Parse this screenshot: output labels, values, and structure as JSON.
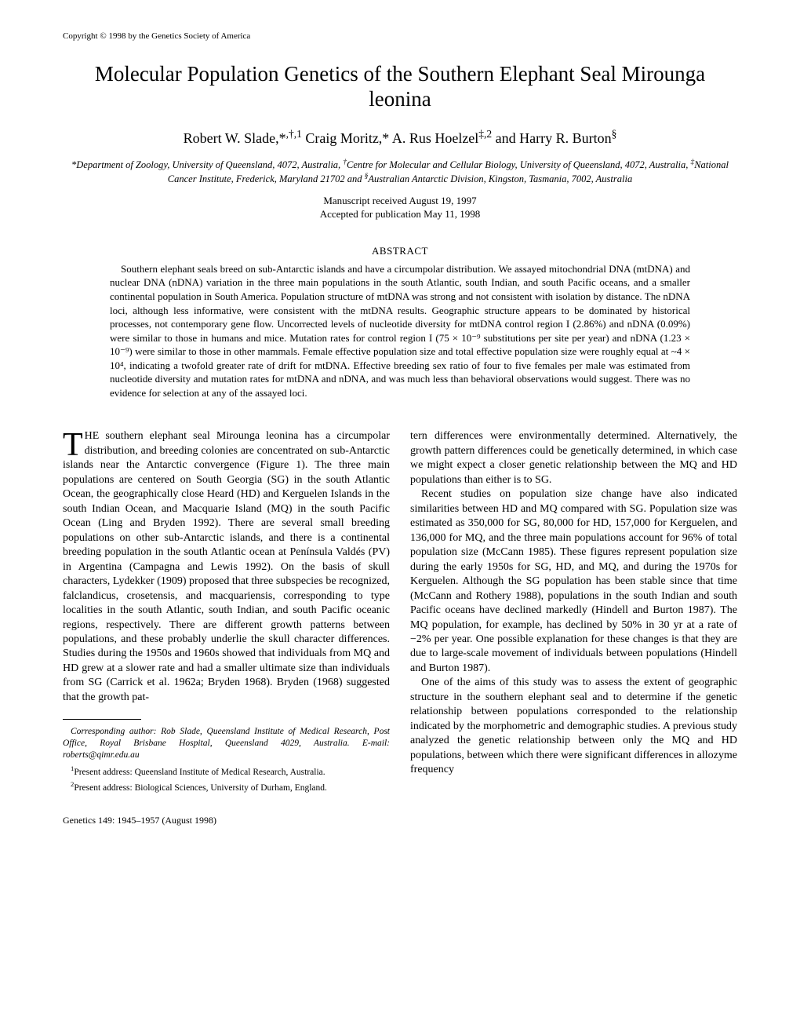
{
  "copyright": "Copyright © 1998 by the Genetics Society of America",
  "title": "Molecular Population Genetics of the Southern Elephant Seal Mirounga leonina",
  "authors_html": "Robert W. Slade,*<sup>,†,1</sup> Craig Moritz,* A. Rus Hoelzel<sup>‡,2</sup> and Harry R. Burton<sup>§</sup>",
  "affiliations_html": "*Department of Zoology, University of Queensland, 4072, Australia, <sup>†</sup>Centre for Molecular and Cellular Biology, University of Queensland, 4072, Australia, <sup>‡</sup>National Cancer Institute, Frederick, Maryland 21702 and <sup>§</sup>Australian Antarctic Division, Kingston, Tasmania, 7002, Australia",
  "received": "Manuscript received August 19, 1997",
  "accepted": "Accepted for publication May 11, 1998",
  "abstract_heading": "ABSTRACT",
  "abstract_body": "Southern elephant seals breed on sub-Antarctic islands and have a circumpolar distribution. We assayed mitochondrial DNA (mtDNA) and nuclear DNA (nDNA) variation in the three main populations in the south Atlantic, south Indian, and south Pacific oceans, and a smaller continental population in South America. Population structure of mtDNA was strong and not consistent with isolation by distance. The nDNA loci, although less informative, were consistent with the mtDNA results. Geographic structure appears to be dominated by historical processes, not contemporary gene flow. Uncorrected levels of nucleotide diversity for mtDNA control region I (2.86%) and nDNA (0.09%) were similar to those in humans and mice. Mutation rates for control region I (75 × 10⁻⁹ substitutions per site per year) and nDNA (1.23 × 10⁻⁹) were similar to those in other mammals. Female effective population size and total effective population size were roughly equal at ~4 × 10⁴, indicating a twofold greater rate of drift for mtDNA. Effective breeding sex ratio of four to five females per male was estimated from nucleotide diversity and mutation rates for mtDNA and nDNA, and was much less than behavioral observations would suggest. There was no evidence for selection at any of the assayed loci.",
  "body": {
    "col1": {
      "p1_dropcap": "T",
      "p1": "HE southern elephant seal Mirounga leonina has a circumpolar distribution, and breeding colonies are concentrated on sub-Antarctic islands near the Antarctic convergence (Figure 1). The three main populations are centered on South Georgia (SG) in the south Atlantic Ocean, the geographically close Heard (HD) and Kerguelen Islands in the south Indian Ocean, and Macquarie Island (MQ) in the south Pacific Ocean (Ling and Bryden 1992). There are several small breeding populations on other sub-Antarctic islands, and there is a continental breeding population in the south Atlantic ocean at Península Valdés (PV) in Argentina (Campagna and Lewis 1992). On the basis of skull characters, Lydekker (1909) proposed that three subspecies be recognized, falclandicus, crosetensis, and macquariensis, corresponding to type localities in the south Atlantic, south Indian, and south Pacific oceanic regions, respectively. There are different growth patterns between populations, and these probably underlie the skull character differences. Studies during the 1950s and 1960s showed that individuals from MQ and HD grew at a slower rate and had a smaller ultimate size than individuals from SG (Carrick et al. 1962a; Bryden 1968). Bryden (1968) suggested that the growth pat-"
    },
    "col2": {
      "p1": "tern differences were environmentally determined. Alternatively, the growth pattern differences could be genetically determined, in which case we might expect a closer genetic relationship between the MQ and HD populations than either is to SG.",
      "p2": "Recent studies on population size change have also indicated similarities between HD and MQ compared with SG. Population size was estimated as 350,000 for SG, 80,000 for HD, 157,000 for Kerguelen, and 136,000 for MQ, and the three main populations account for 96% of total population size (McCann 1985). These figures represent population size during the early 1950s for SG, HD, and MQ, and during the 1970s for Kerguelen. Although the SG population has been stable since that time (McCann and Rothery 1988), populations in the south Indian and south Pacific oceans have declined markedly (Hindell and Burton 1987). The MQ population, for example, has declined by 50% in 30 yr at a rate of −2% per year. One possible explanation for these changes is that they are due to large-scale movement of individuals between populations (Hindell and Burton 1987).",
      "p3": "One of the aims of this study was to assess the extent of geographic structure in the southern elephant seal and to determine if the genetic relationship between populations corresponded to the relationship indicated by the morphometric and demographic studies. A previous study analyzed the genetic relationship between only the MQ and HD populations, between which there were significant differences in allozyme frequency"
    }
  },
  "corresponding": "Corresponding author: Rob Slade, Queensland Institute of Medical Research, Post Office, Royal Brisbane Hospital, Queensland 4029, Australia.   E-mail: roberts@qimr.edu.au",
  "footnote1_html": "<sup>1</sup>Present address: Queensland Institute of Medical Research, Australia.",
  "footnote2_html": "<sup>2</sup>Present address: Biological Sciences, University of Durham, England.",
  "footer": "Genetics 149: 1945–1957 (August 1998)"
}
